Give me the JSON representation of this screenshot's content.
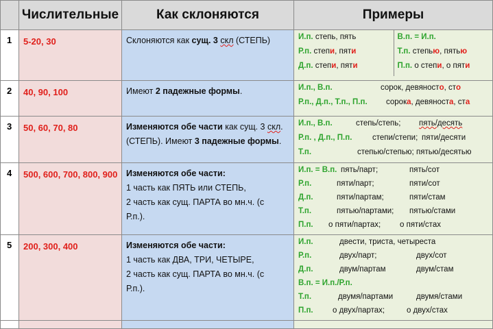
{
  "headers": {
    "word": "Числительные",
    "how": "Как склоняются",
    "ex": "Примеры"
  },
  "rows": [
    {
      "num": "1",
      "words": "5-20, 30",
      "how": {
        "pre": "Склоняются  как ",
        "bold": "сущ. 3 ",
        "skl": "скл",
        "post": " (СТЕПЬ)"
      },
      "left": [
        {
          "case": "И.п.",
          "a": "степь, пять"
        },
        {
          "case": "Р.п.",
          "a1": "степ",
          "e1": "и",
          "a2": ", пят",
          "e2": "и"
        },
        {
          "case": "Д.п.",
          "a1": "степ",
          "e1": "и",
          "a2": ", пят",
          "e2": "и"
        }
      ],
      "right": [
        {
          "case": "В.п. = И.п."
        },
        {
          "case": "Т.п.",
          "a1": "степь",
          "e1": "ю",
          "a2": ", пять",
          "e2": "ю"
        },
        {
          "case": "П.п.",
          "a1": "о степ",
          "e1": "и",
          "a2": ",  о пят",
          "e2": "и"
        }
      ]
    },
    {
      "num": "2",
      "words": "40, 90, 100",
      "how": {
        "pre": "Имеют ",
        "bold": "2 падежные формы",
        "post": "."
      },
      "lines": [
        {
          "case": "И.п.,  В.п.",
          "w1": "сорок,  девяност",
          "e1": "о",
          "w2": ", ст",
          "e2": "о"
        },
        {
          "case": "Р.п., Д.п., Т.п., П.п.",
          "w1": "сорок",
          "e1": "а",
          "w2": ", девяност",
          "e2": "а",
          "w3": ", ст",
          "e3": "а"
        }
      ]
    },
    {
      "num": "3",
      "words": "50, 60, 70, 80",
      "how": {
        "bold": "Изменяются обе части",
        "mid": " как сущ. 3 ",
        "skl": "скл",
        "post2": ".",
        "line2a": "(СТЕПЬ).  Имеют ",
        "line2b": "3 падежные формы",
        "line2c": "."
      },
      "lines": [
        {
          "case": "И.п., В.п.",
          "w1": "пять/десять",
          "extra": "степь/степь;"
        },
        {
          "case": "Р.п. , Д.п., П.п.",
          "text": "степи/степи;",
          "tail": "пяти/десяти"
        },
        {
          "case": "Т.п.",
          "text": "степью/степью;",
          "tail": "пятью/десятью"
        }
      ]
    },
    {
      "num": "4",
      "words": "500, 600, 700, 800, 900",
      "how": {
        "bold": "Изменяются обе части:",
        "l2": "1 часть как ПЯТЬ или СТЕПЬ,",
        "l3": "2 часть как сущ. ПАРТА  во мн.ч. (с",
        "l4": "Р.п.)."
      },
      "lines": [
        {
          "case": "И.п. = В.п.",
          "a": "пять/парт;",
          "b": "пять/сот"
        },
        {
          "case": "Р.п.",
          "a": "пяти/парт;",
          "b": "пяти/сот"
        },
        {
          "case": "Д.п.",
          "a": "пяти/партам;",
          "b": "пяти/стам"
        },
        {
          "case": "Т.п.",
          "a": "пятью/партами;",
          "b": "пятью/стами"
        },
        {
          "case": "П.п.",
          "a": "о пяти/партах;",
          "b": "о пяти/стах"
        }
      ]
    },
    {
      "num": "5",
      "words": "200, 300, 400",
      "how": {
        "bold": "Изменяются обе части:",
        "l2": "1 часть как ДВА, ТРИ, ЧЕТЫРЕ,",
        "l3": "2 часть как сущ. ПАРТА  во мн.ч. (с",
        "l4": "Р.п.)."
      },
      "lines": [
        {
          "case": "И.п.",
          "a": "двести, триста, четыреста",
          "b": ""
        },
        {
          "case": "Р.п.",
          "a": "двух/парт;",
          "b": "двух/сот"
        },
        {
          "case": "Д.п.",
          "a": "двум/партам",
          "b": "двум/стам"
        },
        {
          "case": "В.п.  =  И.п./Р.п.",
          "a": "",
          "b": ""
        },
        {
          "case": "Т.п.",
          "a": "двумя/партами",
          "b": "двумя/стами"
        },
        {
          "case": "П.п.",
          "a": "о двух/партах;",
          "b": "о двух/стах"
        }
      ]
    }
  ]
}
